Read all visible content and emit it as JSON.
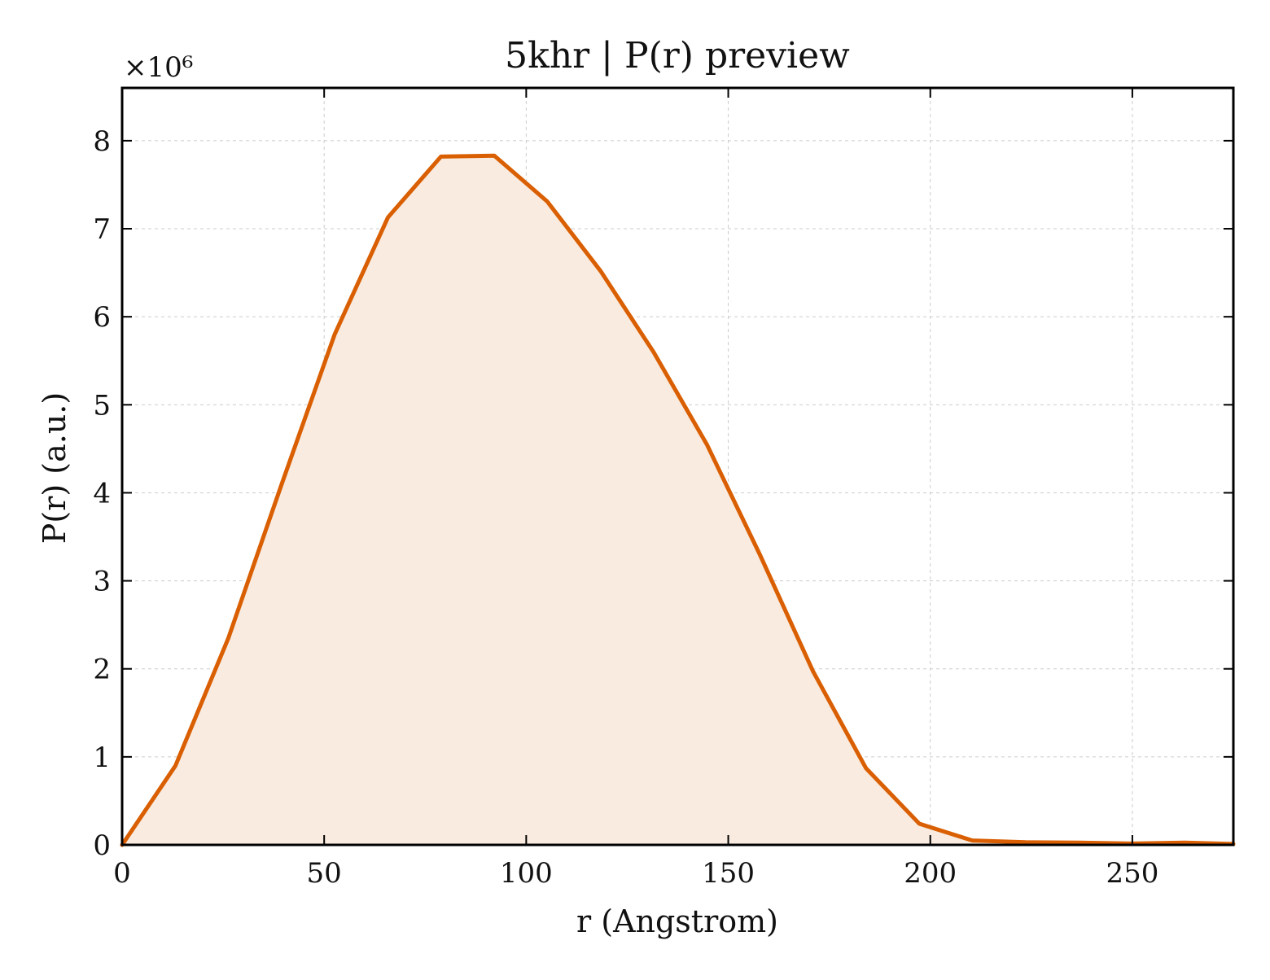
{
  "chart_data": {
    "type": "area",
    "title": "5khr | P(r) preview",
    "xlabel": "r (Angstrom)",
    "ylabel": "P(r) (a.u.)",
    "y_multiplier_label": "×10⁶",
    "xlim": [
      0,
      275
    ],
    "ylim": [
      0,
      8.6
    ],
    "y_unit_scale": 1000000,
    "grid": true,
    "x_ticks": [
      0,
      50,
      100,
      150,
      200,
      250
    ],
    "x_tick_labels": [
      "0",
      "50",
      "100",
      "150",
      "200",
      "250"
    ],
    "y_ticks": [
      0,
      1,
      2,
      3,
      4,
      5,
      6,
      7,
      8
    ],
    "y_tick_labels": [
      "0",
      "1",
      "2",
      "3",
      "4",
      "5",
      "6",
      "7",
      "8"
    ],
    "series": [
      {
        "x": [
          0,
          13.2,
          26.3,
          39.5,
          52.6,
          65.8,
          78.9,
          92.1,
          105.2,
          118.4,
          131.5,
          144.7,
          157.8,
          171.0,
          184.1,
          197.3,
          210.4,
          223.6,
          236.7,
          249.9,
          263.0,
          275.0
        ],
        "y": [
          0.0,
          0.9,
          2.35,
          4.1,
          5.8,
          7.13,
          7.82,
          7.83,
          7.31,
          6.52,
          5.6,
          4.55,
          3.3,
          1.97,
          0.87,
          0.24,
          0.05,
          0.03,
          0.025,
          0.015,
          0.025,
          0.01
        ]
      }
    ],
    "colors": {
      "line": "#d95f02",
      "fill": "#f9ebe0",
      "grid": "#cccccc",
      "axis": "#000000"
    }
  }
}
